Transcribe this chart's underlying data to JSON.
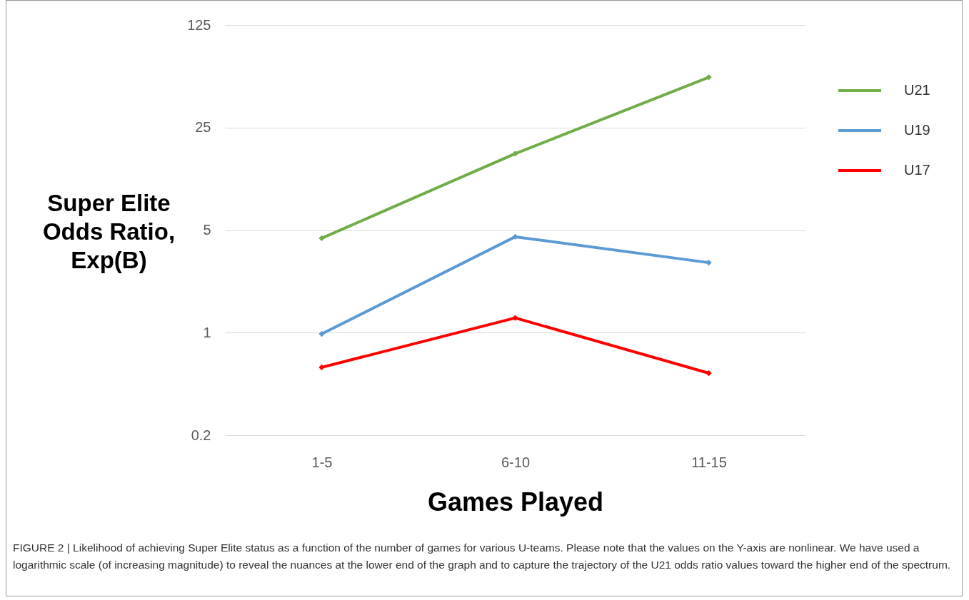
{
  "chart_data": {
    "type": "line",
    "xlabel": "Games Played",
    "ylabel": "Super Elite Odds Ratio, Exp(B)",
    "categories": [
      "1-5",
      "6-10",
      "11-15"
    ],
    "series": [
      {
        "name": "U21",
        "color": "#70ad47",
        "values": [
          4.4,
          16.6,
          55
        ]
      },
      {
        "name": "U19",
        "color": "#5b9bd5",
        "values": [
          0.98,
          4.5,
          3.0
        ]
      },
      {
        "name": "U17",
        "color": "#ff0000",
        "values": [
          0.58,
          1.26,
          0.53
        ]
      }
    ],
    "log": true,
    "ylim": [
      0.2,
      125
    ],
    "yticks": [
      0.2,
      1,
      5,
      25,
      125
    ],
    "grid": "y",
    "legend": "top right",
    "marker": "diamond",
    "annotations": [
      "FIGURE 2 | Likelihood of achieving Super Elite status as a function of the number of games for various U-teams. Please note that the values on the Y-axis are nonlinear. We have used a logarithmic scale (of increasing magnitude) to reveal the nuances at the lower end of the graph and to capture the trajectory of the U21 odds ratio values toward the higher end of the spectrum."
    ]
  }
}
